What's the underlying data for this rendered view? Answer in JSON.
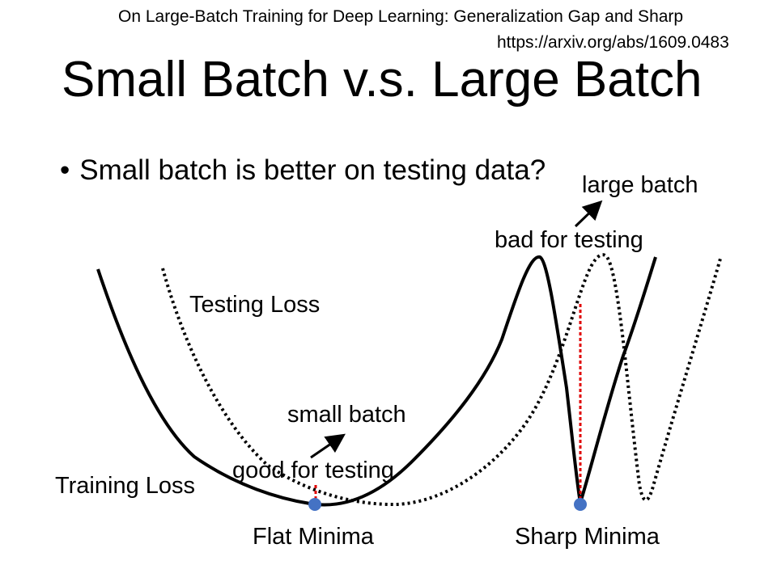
{
  "citation": {
    "title": "On Large-Batch Training for Deep Learning: Generalization Gap and Sharp",
    "url": "https://arxiv.org/abs/1609.0483"
  },
  "slide": {
    "title": "Small Batch v.s. Large Batch",
    "bullet": "Small batch is better on testing data?",
    "bullet_marker": "•"
  },
  "diagram": {
    "training_loss_label": "Training Loss",
    "testing_loss_label": "Testing Loss",
    "small_batch_label": "small batch",
    "good_for_testing_label": "good for testing",
    "large_batch_label": "large batch",
    "bad_for_testing_label": "bad for testing",
    "flat_minima_label": "Flat Minima",
    "sharp_minima_label": "Sharp Minima",
    "colors": {
      "curve": "#000000",
      "minima_point": "#4472C4",
      "gap_line": "#E00000"
    }
  }
}
